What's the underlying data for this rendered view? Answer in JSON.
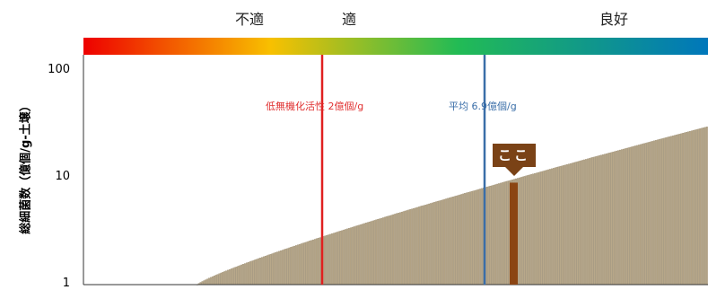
{
  "chart_data": {
    "type": "bar",
    "title": "",
    "xlabel": "",
    "ylabel": "総細菌数（億個/g-土壌）",
    "yscale": "log",
    "ylim": [
      1,
      200
    ],
    "yticks": [
      {
        "value": 1,
        "label": "1"
      },
      {
        "value": 10,
        "label": "10"
      },
      {
        "value": 100,
        "label": "100"
      }
    ],
    "color_scale": {
      "colors": [
        "#ee0000",
        "#f8c000",
        "#22bb55",
        "#0077bb"
      ],
      "labels": [
        {
          "text": "不適",
          "position": "left"
        },
        {
          "text": "適",
          "position": "center-left"
        },
        {
          "text": "良好",
          "position": "right"
        }
      ]
    },
    "bar_color": "#b8a88a",
    "num_bars": 300,
    "y_min_value": 1,
    "y_max_value": 30,
    "reference_lines": [
      {
        "name": "低無機化活性",
        "value_label": "2億個/g",
        "color": "#e02020"
      },
      {
        "name": "平均",
        "value_label": "6.9億個/g",
        "color": "#3a6ea8"
      }
    ],
    "highlight": {
      "label": "ここ",
      "value": 9,
      "bar_color": "#8b4513",
      "marker_color": "#7a4216"
    }
  }
}
